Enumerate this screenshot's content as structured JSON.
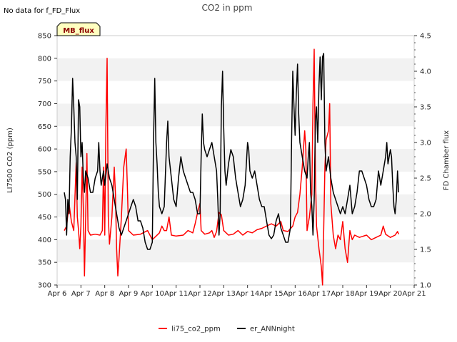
{
  "note_top_left": "No data for f_FD_Flux",
  "badge": {
    "label": "MB_flux",
    "fill": "#ffffc0",
    "text_color": "#8b0000"
  },
  "chart_data": {
    "type": "line",
    "title": "CO2 in ppm",
    "xlabel": "",
    "ylabel_left": "LI7500 CO2 (ppm)",
    "ylabel_right": "FD Chamber flux",
    "x_ticks": [
      "Apr 6",
      "Apr 7",
      "Apr 8",
      "Apr 9",
      "Apr 10",
      "Apr 11",
      "Apr 12",
      "Apr 13",
      "Apr 14",
      "Apr 15",
      "Apr 16",
      "Apr 17",
      "Apr 18",
      "Apr 19",
      "Apr 20",
      "Apr 21"
    ],
    "xlim_days": [
      6,
      21
    ],
    "ylim_left": [
      300,
      850
    ],
    "yticks_left": [
      300,
      350,
      400,
      450,
      500,
      550,
      600,
      650,
      700,
      750,
      800,
      850
    ],
    "ylim_right": [
      1.0,
      4.5
    ],
    "yticks_right": [
      1.0,
      1.5,
      2.0,
      2.5,
      3.0,
      3.5,
      4.0,
      4.5
    ],
    "y_tick_labels_right": [
      "1.0",
      "1.5",
      "2.0",
      "2.5",
      "3.0",
      "3.5",
      "4.0",
      "4.5"
    ],
    "grid": "horizontal bands",
    "legend_position": "bottom-center",
    "series": [
      {
        "name": "li75_co2_ppm",
        "axis": "left",
        "color": "#ff0000",
        "points": [
          [
            6.3,
            420
          ],
          [
            6.4,
            430
          ],
          [
            6.5,
            480
          ],
          [
            6.6,
            440
          ],
          [
            6.7,
            420
          ],
          [
            6.8,
            570
          ],
          [
            6.85,
            450
          ],
          [
            6.9,
            420
          ],
          [
            6.95,
            380
          ],
          [
            7.0,
            430
          ],
          [
            7.05,
            560
          ],
          [
            7.1,
            470
          ],
          [
            7.15,
            320
          ],
          [
            7.2,
            450
          ],
          [
            7.25,
            590
          ],
          [
            7.3,
            420
          ],
          [
            7.4,
            410
          ],
          [
            7.6,
            412
          ],
          [
            7.8,
            410
          ],
          [
            7.9,
            420
          ],
          [
            7.95,
            560
          ],
          [
            8.0,
            410
          ],
          [
            8.05,
            650
          ],
          [
            8.1,
            800
          ],
          [
            8.15,
            450
          ],
          [
            8.2,
            390
          ],
          [
            8.3,
            450
          ],
          [
            8.4,
            560
          ],
          [
            8.45,
            500
          ],
          [
            8.5,
            380
          ],
          [
            8.55,
            320
          ],
          [
            8.6,
            360
          ],
          [
            8.7,
            450
          ],
          [
            8.8,
            560
          ],
          [
            8.9,
            600
          ],
          [
            8.95,
            520
          ],
          [
            9.0,
            420
          ],
          [
            9.2,
            410
          ],
          [
            9.5,
            412
          ],
          [
            9.8,
            420
          ],
          [
            10.0,
            400
          ],
          [
            10.3,
            415
          ],
          [
            10.4,
            430
          ],
          [
            10.5,
            420
          ],
          [
            10.6,
            420
          ],
          [
            10.7,
            450
          ],
          [
            10.8,
            410
          ],
          [
            11.0,
            408
          ],
          [
            11.3,
            410
          ],
          [
            11.5,
            420
          ],
          [
            11.7,
            415
          ],
          [
            11.8,
            435
          ],
          [
            11.9,
            460
          ],
          [
            12.0,
            480
          ],
          [
            12.05,
            420
          ],
          [
            12.2,
            412
          ],
          [
            12.4,
            415
          ],
          [
            12.5,
            420
          ],
          [
            12.6,
            405
          ],
          [
            12.7,
            418
          ],
          [
            12.8,
            460
          ],
          [
            12.9,
            455
          ],
          [
            13.0,
            420
          ],
          [
            13.2,
            410
          ],
          [
            13.4,
            412
          ],
          [
            13.6,
            420
          ],
          [
            13.8,
            410
          ],
          [
            14.0,
            418
          ],
          [
            14.2,
            415
          ],
          [
            14.4,
            422
          ],
          [
            14.6,
            425
          ],
          [
            14.8,
            430
          ],
          [
            15.0,
            435
          ],
          [
            15.2,
            430
          ],
          [
            15.4,
            440
          ],
          [
            15.5,
            420
          ],
          [
            15.7,
            418
          ],
          [
            15.9,
            430
          ],
          [
            16.0,
            450
          ],
          [
            16.1,
            460
          ],
          [
            16.2,
            500
          ],
          [
            16.3,
            560
          ],
          [
            16.4,
            640
          ],
          [
            16.45,
            600
          ],
          [
            16.5,
            420
          ],
          [
            16.6,
            450
          ],
          [
            16.7,
            500
          ],
          [
            16.75,
            700
          ],
          [
            16.8,
            820
          ],
          [
            16.85,
            550
          ],
          [
            16.9,
            430
          ],
          [
            17.0,
            380
          ],
          [
            17.1,
            340
          ],
          [
            17.15,
            300
          ],
          [
            17.2,
            420
          ],
          [
            17.25,
            560
          ],
          [
            17.3,
            620
          ],
          [
            17.4,
            640
          ],
          [
            17.45,
            700
          ],
          [
            17.5,
            480
          ],
          [
            17.6,
            410
          ],
          [
            17.7,
            380
          ],
          [
            17.8,
            410
          ],
          [
            17.9,
            400
          ],
          [
            18.0,
            440
          ],
          [
            18.1,
            380
          ],
          [
            18.2,
            350
          ],
          [
            18.3,
            420
          ],
          [
            18.4,
            400
          ],
          [
            18.5,
            410
          ],
          [
            18.7,
            405
          ],
          [
            19.0,
            410
          ],
          [
            19.2,
            400
          ],
          [
            19.4,
            405
          ],
          [
            19.6,
            410
          ],
          [
            19.7,
            430
          ],
          [
            19.8,
            412
          ],
          [
            20.0,
            405
          ],
          [
            20.2,
            410
          ],
          [
            20.3,
            418
          ],
          [
            20.35,
            412
          ]
        ]
      },
      {
        "name": "er_ANNnight",
        "axis": "right",
        "color": "#000000",
        "points": [
          [
            6.3,
            2.3
          ],
          [
            6.35,
            2.2
          ],
          [
            6.4,
            1.7
          ],
          [
            6.45,
            2.2
          ],
          [
            6.5,
            2.0
          ],
          [
            6.55,
            2.8
          ],
          [
            6.6,
            3.2
          ],
          [
            6.65,
            3.9
          ],
          [
            6.7,
            3.5
          ],
          [
            6.75,
            3.0
          ],
          [
            6.8,
            2.8
          ],
          [
            6.85,
            2.2
          ],
          [
            6.9,
            3.6
          ],
          [
            6.95,
            3.5
          ],
          [
            7.0,
            2.8
          ],
          [
            7.05,
            3.0
          ],
          [
            7.1,
            2.5
          ],
          [
            7.15,
            2.3
          ],
          [
            7.2,
            2.6
          ],
          [
            7.3,
            2.5
          ],
          [
            7.4,
            2.3
          ],
          [
            7.5,
            2.3
          ],
          [
            7.6,
            2.5
          ],
          [
            7.7,
            2.6
          ],
          [
            7.75,
            3.0
          ],
          [
            7.8,
            2.6
          ],
          [
            7.85,
            2.4
          ],
          [
            7.9,
            2.5
          ],
          [
            7.95,
            2.6
          ],
          [
            8.0,
            2.4
          ],
          [
            8.1,
            2.7
          ],
          [
            8.2,
            2.5
          ],
          [
            8.3,
            2.4
          ],
          [
            8.4,
            2.2
          ],
          [
            8.5,
            2.0
          ],
          [
            8.6,
            1.8
          ],
          [
            8.7,
            1.7
          ],
          [
            8.8,
            1.8
          ],
          [
            8.9,
            1.9
          ],
          [
            9.0,
            2.0
          ],
          [
            9.1,
            2.1
          ],
          [
            9.2,
            2.2
          ],
          [
            9.3,
            2.1
          ],
          [
            9.4,
            1.9
          ],
          [
            9.5,
            1.9
          ],
          [
            9.6,
            1.8
          ],
          [
            9.7,
            1.6
          ],
          [
            9.8,
            1.5
          ],
          [
            9.9,
            1.5
          ],
          [
            10.0,
            1.6
          ],
          [
            10.05,
            3.0
          ],
          [
            10.1,
            3.9
          ],
          [
            10.15,
            3.0
          ],
          [
            10.2,
            2.7
          ],
          [
            10.25,
            2.3
          ],
          [
            10.3,
            2.1
          ],
          [
            10.4,
            2.0
          ],
          [
            10.5,
            2.1
          ],
          [
            10.6,
            3.0
          ],
          [
            10.65,
            3.3
          ],
          [
            10.7,
            2.8
          ],
          [
            10.8,
            2.5
          ],
          [
            10.9,
            2.2
          ],
          [
            11.0,
            2.1
          ],
          [
            11.1,
            2.5
          ],
          [
            11.2,
            2.8
          ],
          [
            11.3,
            2.6
          ],
          [
            11.4,
            2.5
          ],
          [
            11.5,
            2.4
          ],
          [
            11.6,
            2.3
          ],
          [
            11.7,
            2.3
          ],
          [
            11.8,
            2.2
          ],
          [
            11.9,
            2.0
          ],
          [
            12.0,
            2.0
          ],
          [
            12.05,
            2.8
          ],
          [
            12.1,
            3.4
          ],
          [
            12.15,
            3.0
          ],
          [
            12.2,
            2.9
          ],
          [
            12.3,
            2.8
          ],
          [
            12.4,
            2.9
          ],
          [
            12.5,
            3.0
          ],
          [
            12.6,
            2.8
          ],
          [
            12.7,
            2.6
          ],
          [
            12.75,
            2.2
          ],
          [
            12.8,
            1.7
          ],
          [
            12.85,
            2.0
          ],
          [
            12.9,
            3.5
          ],
          [
            12.95,
            4.0
          ],
          [
            13.0,
            3.2
          ],
          [
            13.05,
            2.6
          ],
          [
            13.1,
            2.4
          ],
          [
            13.2,
            2.7
          ],
          [
            13.3,
            2.9
          ],
          [
            13.4,
            2.8
          ],
          [
            13.5,
            2.5
          ],
          [
            13.6,
            2.3
          ],
          [
            13.7,
            2.1
          ],
          [
            13.8,
            2.2
          ],
          [
            13.9,
            2.4
          ],
          [
            14.0,
            3.0
          ],
          [
            14.05,
            2.9
          ],
          [
            14.1,
            2.6
          ],
          [
            14.2,
            2.5
          ],
          [
            14.3,
            2.6
          ],
          [
            14.4,
            2.4
          ],
          [
            14.5,
            2.2
          ],
          [
            14.6,
            2.1
          ],
          [
            14.7,
            2.1
          ],
          [
            14.8,
            1.9
          ],
          [
            14.9,
            1.7
          ],
          [
            15.0,
            1.65
          ],
          [
            15.1,
            1.7
          ],
          [
            15.2,
            1.9
          ],
          [
            15.3,
            2.0
          ],
          [
            15.4,
            1.8
          ],
          [
            15.5,
            1.7
          ],
          [
            15.6,
            1.6
          ],
          [
            15.7,
            1.6
          ],
          [
            15.8,
            1.8
          ],
          [
            15.85,
            3.0
          ],
          [
            15.9,
            4.0
          ],
          [
            15.95,
            3.5
          ],
          [
            16.0,
            3.1
          ],
          [
            16.05,
            3.7
          ],
          [
            16.1,
            4.1
          ],
          [
            16.15,
            3.4
          ],
          [
            16.2,
            3.0
          ],
          [
            16.3,
            2.8
          ],
          [
            16.4,
            2.6
          ],
          [
            16.5,
            2.5
          ],
          [
            16.55,
            2.8
          ],
          [
            16.6,
            3.0
          ],
          [
            16.65,
            2.3
          ],
          [
            16.7,
            2.1
          ],
          [
            16.75,
            1.7
          ],
          [
            16.8,
            2.2
          ],
          [
            16.85,
            3.3
          ],
          [
            16.9,
            3.5
          ],
          [
            16.95,
            3.0
          ],
          [
            17.0,
            3.8
          ],
          [
            17.05,
            4.2
          ],
          [
            17.1,
            3.6
          ],
          [
            17.15,
            4.2
          ],
          [
            17.2,
            4.25
          ],
          [
            17.25,
            3.0
          ],
          [
            17.3,
            2.6
          ],
          [
            17.35,
            2.7
          ],
          [
            17.4,
            2.8
          ],
          [
            17.5,
            2.5
          ],
          [
            17.6,
            2.3
          ],
          [
            17.7,
            2.2
          ],
          [
            17.8,
            2.1
          ],
          [
            17.9,
            2.0
          ],
          [
            18.0,
            2.1
          ],
          [
            18.1,
            2.0
          ],
          [
            18.2,
            2.2
          ],
          [
            18.3,
            2.4
          ],
          [
            18.4,
            2.0
          ],
          [
            18.5,
            2.1
          ],
          [
            18.6,
            2.3
          ],
          [
            18.7,
            2.6
          ],
          [
            18.8,
            2.6
          ],
          [
            18.9,
            2.5
          ],
          [
            19.0,
            2.4
          ],
          [
            19.1,
            2.2
          ],
          [
            19.2,
            2.1
          ],
          [
            19.3,
            2.1
          ],
          [
            19.4,
            2.2
          ],
          [
            19.5,
            2.6
          ],
          [
            19.55,
            2.5
          ],
          [
            19.6,
            2.4
          ],
          [
            19.7,
            2.6
          ],
          [
            19.8,
            2.8
          ],
          [
            19.85,
            3.0
          ],
          [
            19.9,
            2.7
          ],
          [
            20.0,
            2.9
          ],
          [
            20.05,
            2.8
          ],
          [
            20.1,
            2.4
          ],
          [
            20.15,
            2.1
          ],
          [
            20.2,
            2.0
          ],
          [
            20.25,
            2.2
          ],
          [
            20.3,
            2.6
          ],
          [
            20.35,
            2.3
          ]
        ]
      }
    ]
  }
}
